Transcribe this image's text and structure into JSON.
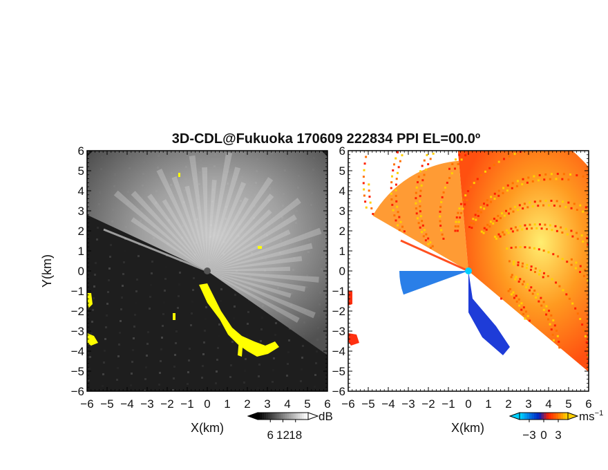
{
  "title": "3D-CDL@Fukuoka 170609 222834 PPI EL=00.0º",
  "chart_data": [
    {
      "type": "heatmap",
      "panel": "left",
      "field": "echo intensity",
      "xlabel": "X(km)",
      "ylabel": "Y(km)",
      "xlim": [
        -6,
        6
      ],
      "ylim": [
        -6,
        6
      ],
      "x_ticks": [
        "−6",
        "−5",
        "−4",
        "−3",
        "−2",
        "−1",
        "0",
        "1",
        "2",
        "3",
        "4",
        "5",
        "6"
      ],
      "y_ticks": [
        "−6",
        "−5",
        "−4",
        "−3",
        "−2",
        "−1",
        "0",
        "1",
        "2",
        "3",
        "4",
        "5",
        "6"
      ],
      "colorbar": {
        "unit": "dB",
        "ticks": [
          "6",
          "12",
          "18"
        ],
        "tick_values": [
          6,
          12,
          18
        ],
        "range": [
          0,
          24
        ],
        "colors": [
          "#000000",
          "#ffffff"
        ]
      },
      "background_color": "#1e1e1e",
      "highlight_color": "#ffff00",
      "echo_sector_deg": [
        -35,
        155
      ]
    },
    {
      "type": "heatmap",
      "panel": "right",
      "field": "Doppler velocity",
      "xlabel": "X(km)",
      "xlim": [
        -6,
        6
      ],
      "ylim": [
        -6,
        6
      ],
      "x_ticks": [
        "−6",
        "−5",
        "−4",
        "−3",
        "−2",
        "−1",
        "0",
        "1",
        "2",
        "3",
        "4",
        "5",
        "6"
      ],
      "y_ticks": [
        "−6",
        "−5",
        "−4",
        "−3",
        "−2",
        "−1",
        "0",
        "1",
        "2",
        "3",
        "4",
        "5",
        "6"
      ],
      "colorbar": {
        "unit": "ms",
        "unit_exp": "−1",
        "ticks": [
          "−3",
          "0",
          "3"
        ],
        "tick_values": [
          -3,
          0,
          3
        ],
        "range": [
          -5,
          5
        ],
        "colors": [
          "#00d0ff",
          "#0070e0",
          "#0020c0",
          "#ff2000",
          "#ff7000",
          "#ffd000"
        ]
      },
      "approaching_color": "#2a7fe8",
      "receding_color": "#ff8a10"
    }
  ]
}
